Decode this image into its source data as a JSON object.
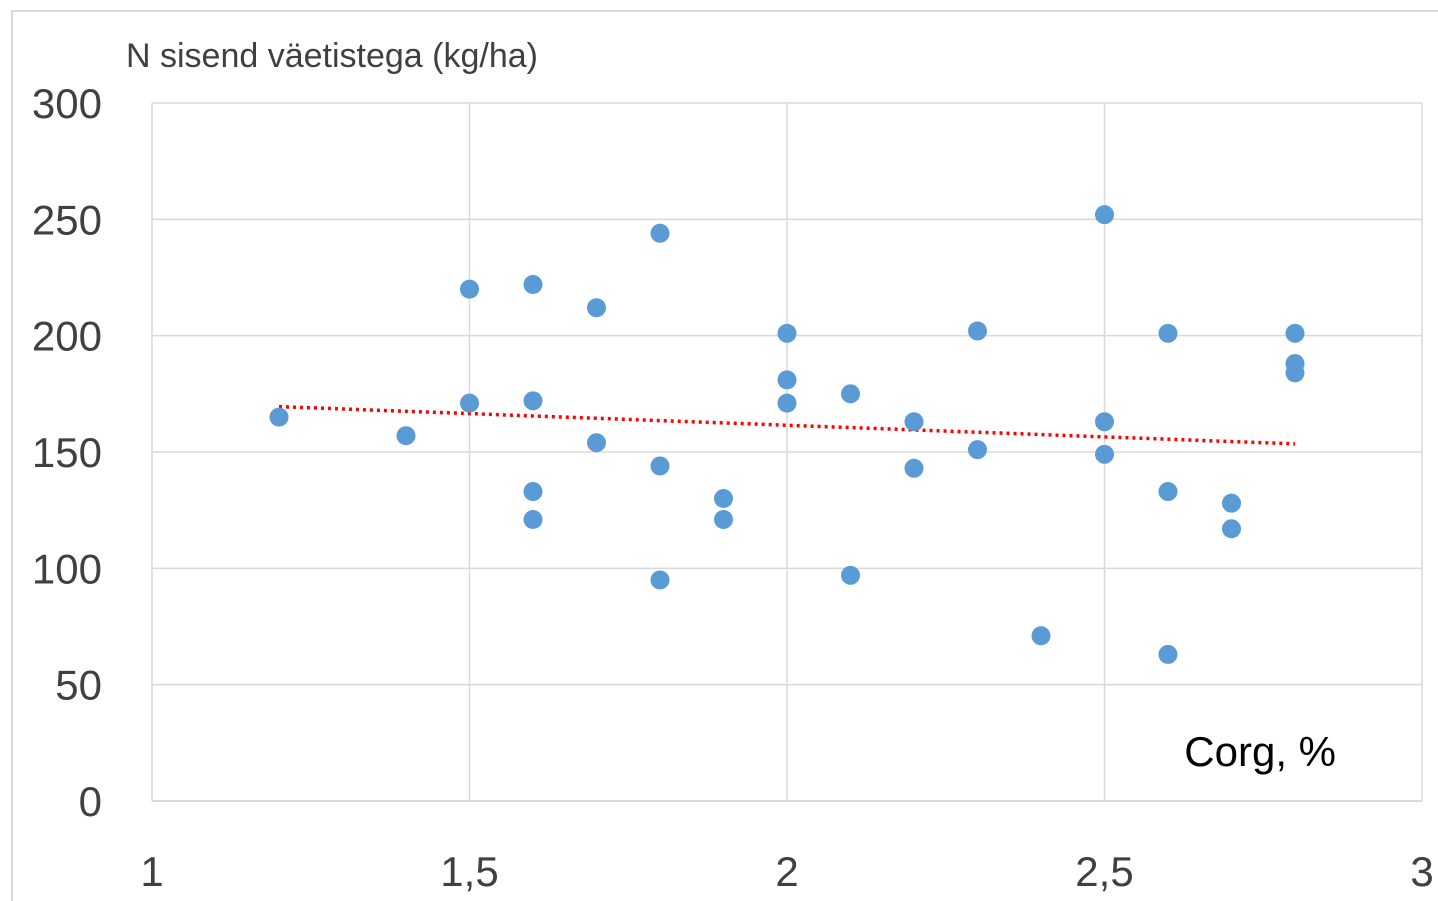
{
  "chart_data": {
    "type": "scatter",
    "title": "",
    "ylabel": "N sisend väetistega (kg/ha)",
    "xlabel": "Corg, %",
    "xlim": [
      1,
      3
    ],
    "ylim": [
      0,
      300
    ],
    "xticks": [
      1,
      1.5,
      2,
      2.5,
      3
    ],
    "xtick_labels": [
      "1",
      "1,5",
      "2",
      "2,5",
      "3"
    ],
    "yticks": [
      0,
      50,
      100,
      150,
      200,
      250,
      300
    ],
    "ytick_labels": [
      "0",
      "50",
      "100",
      "150",
      "200",
      "250",
      "300"
    ],
    "grid": true,
    "legend": "none",
    "series": [
      {
        "marker_color": "#5b9bd5",
        "points": [
          {
            "x": 1.2,
            "y": 165
          },
          {
            "x": 1.4,
            "y": 157
          },
          {
            "x": 1.5,
            "y": 220
          },
          {
            "x": 1.5,
            "y": 171
          },
          {
            "x": 1.6,
            "y": 222
          },
          {
            "x": 1.6,
            "y": 172
          },
          {
            "x": 1.6,
            "y": 133
          },
          {
            "x": 1.6,
            "y": 121
          },
          {
            "x": 1.7,
            "y": 212
          },
          {
            "x": 1.7,
            "y": 154
          },
          {
            "x": 1.8,
            "y": 244
          },
          {
            "x": 1.8,
            "y": 144
          },
          {
            "x": 1.8,
            "y": 95
          },
          {
            "x": 1.9,
            "y": 130
          },
          {
            "x": 1.9,
            "y": 121
          },
          {
            "x": 2.0,
            "y": 201
          },
          {
            "x": 2.0,
            "y": 181
          },
          {
            "x": 2.0,
            "y": 171
          },
          {
            "x": 2.1,
            "y": 175
          },
          {
            "x": 2.1,
            "y": 97
          },
          {
            "x": 2.2,
            "y": 163
          },
          {
            "x": 2.2,
            "y": 143
          },
          {
            "x": 2.3,
            "y": 202
          },
          {
            "x": 2.3,
            "y": 151
          },
          {
            "x": 2.4,
            "y": 71
          },
          {
            "x": 2.5,
            "y": 252
          },
          {
            "x": 2.5,
            "y": 163
          },
          {
            "x": 2.5,
            "y": 149
          },
          {
            "x": 2.6,
            "y": 201
          },
          {
            "x": 2.6,
            "y": 133
          },
          {
            "x": 2.6,
            "y": 63
          },
          {
            "x": 2.7,
            "y": 128
          },
          {
            "x": 2.7,
            "y": 117
          },
          {
            "x": 2.8,
            "y": 201
          },
          {
            "x": 2.8,
            "y": 188
          },
          {
            "x": 2.8,
            "y": 184
          }
        ]
      }
    ],
    "trendline": {
      "type": "linear",
      "color": "#ff0000",
      "style": "dotted",
      "x_start": 1.2,
      "y_start": 169.5,
      "x_end": 2.8,
      "y_end": 153.5
    },
    "colors": {
      "marker": "#5b9bd5",
      "trendline": "#ff0000",
      "grid": "#d9d9d9",
      "axis_text": "#404040"
    }
  }
}
